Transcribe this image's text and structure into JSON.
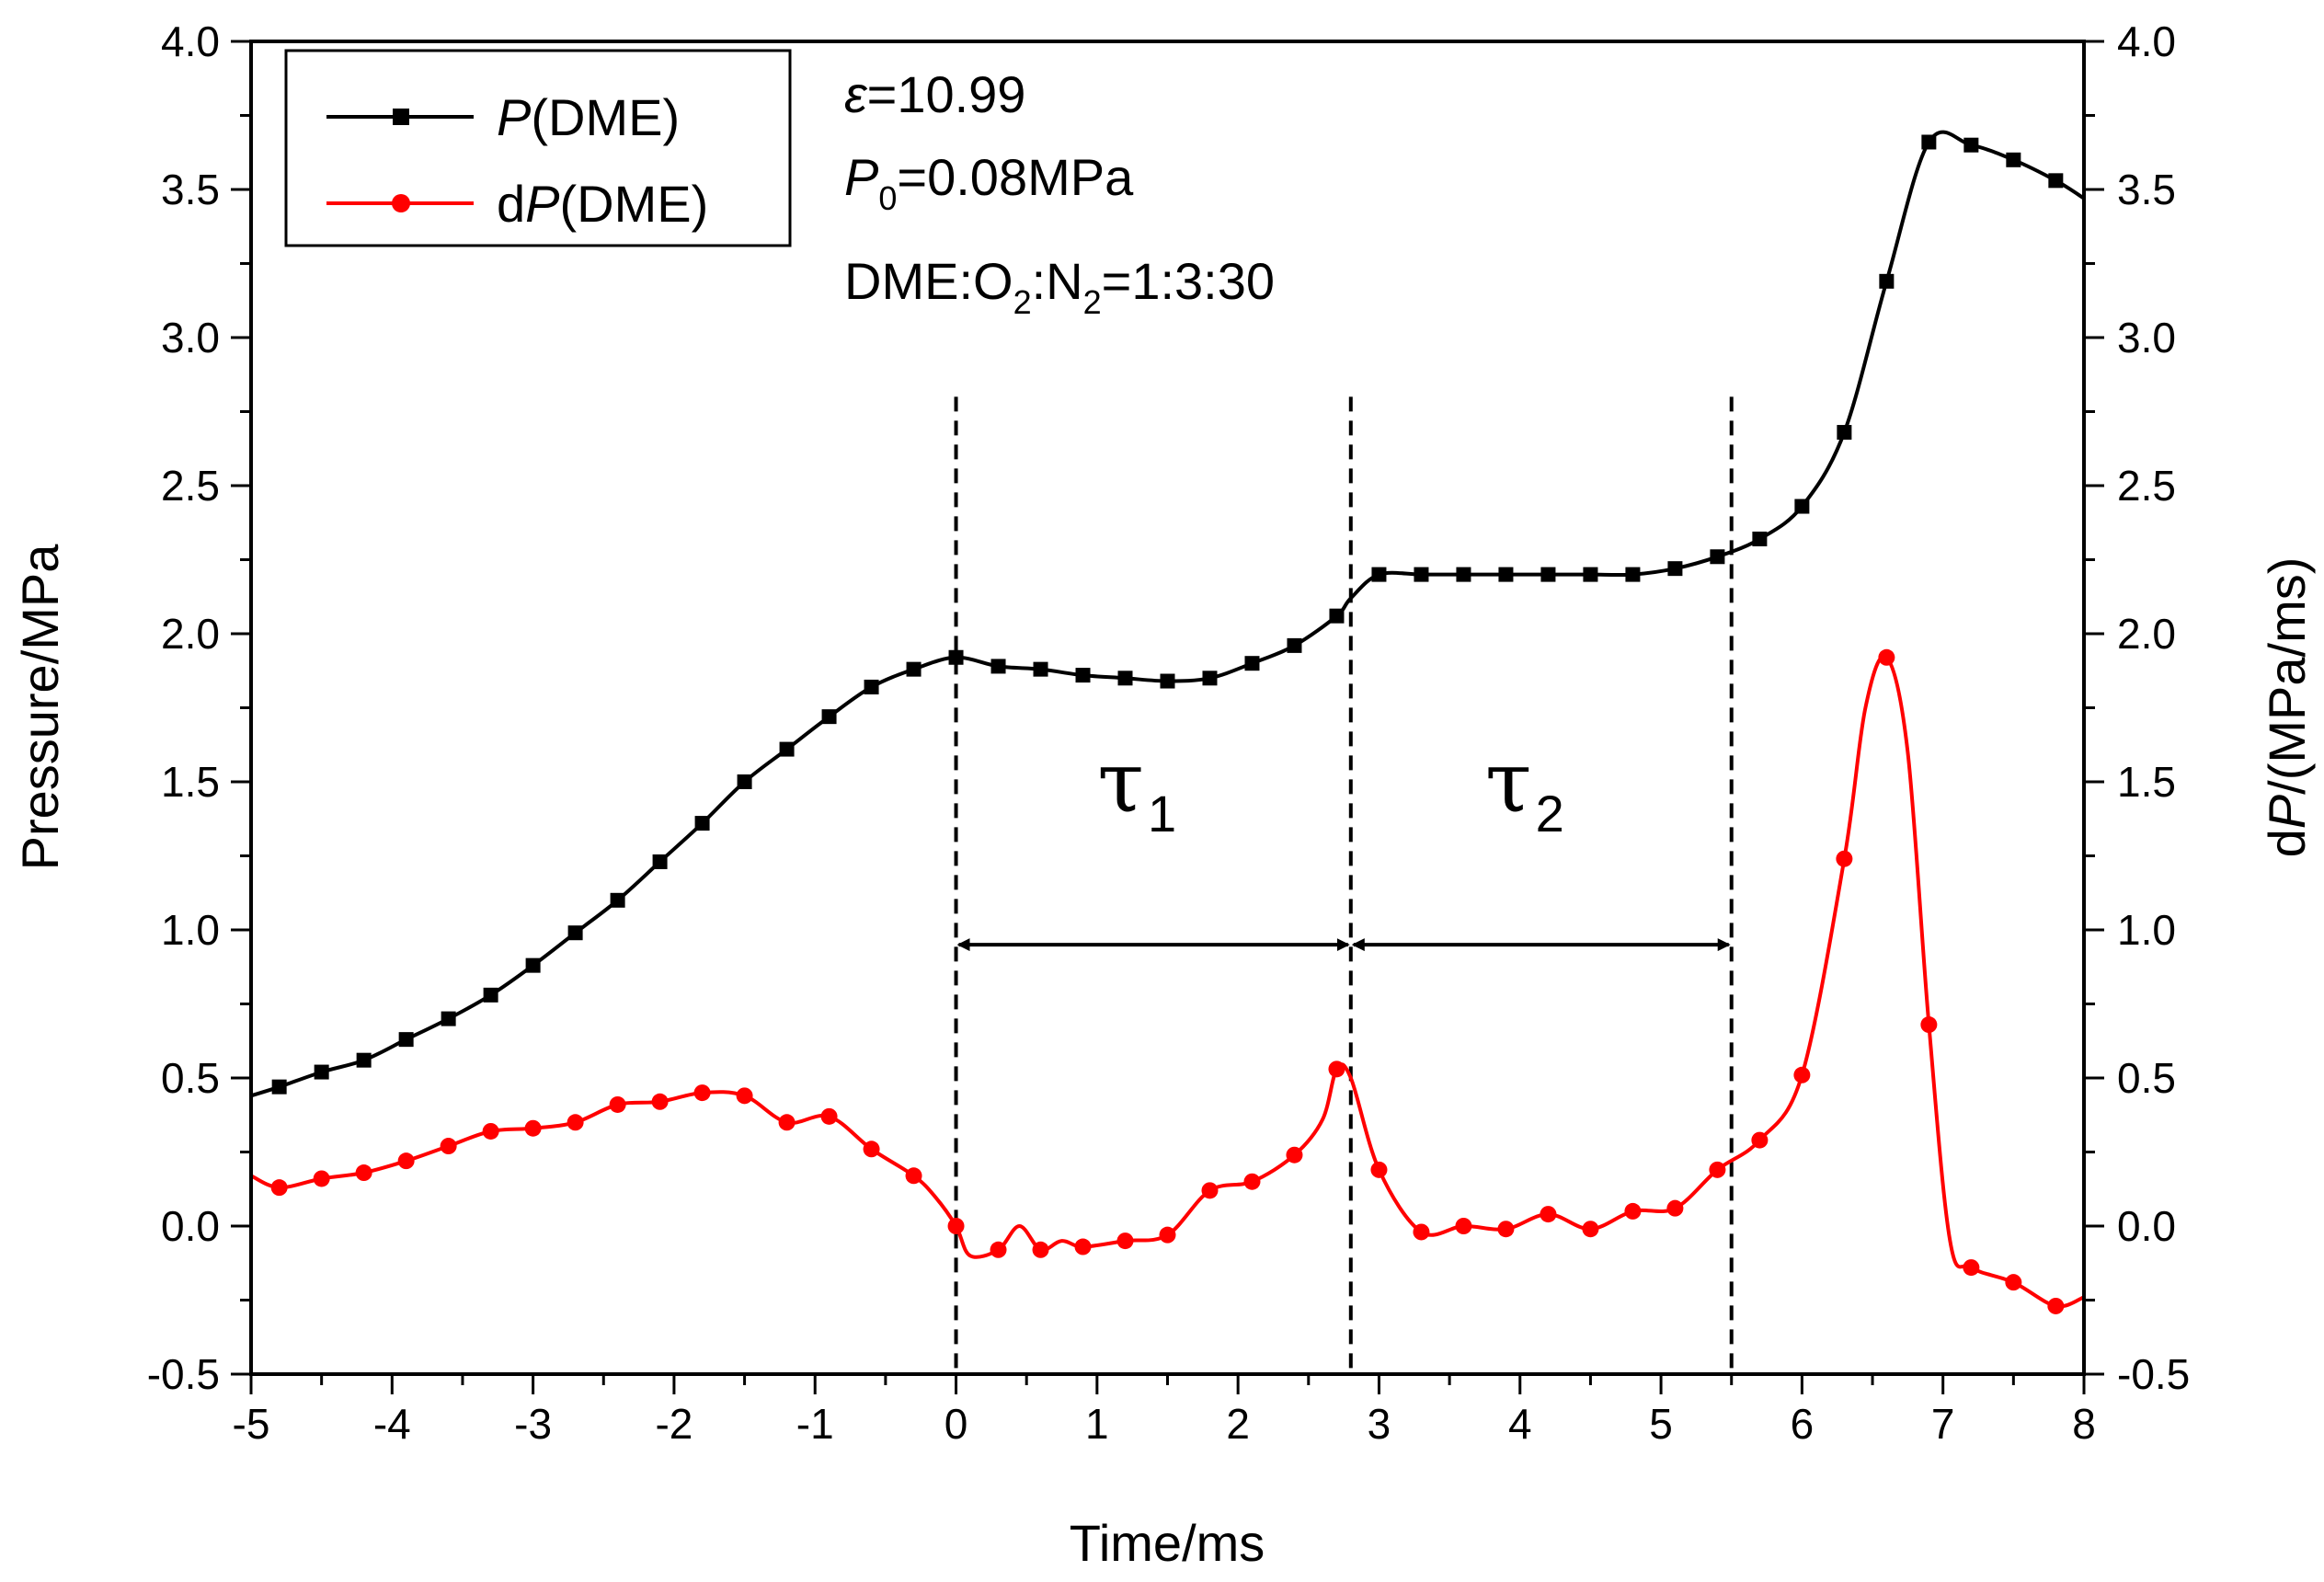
{
  "chart_data": {
    "type": "line",
    "xlabel": "Time/ms",
    "ylabel_left": "Pressure/MPa",
    "ylabel_right": {
      "prefix": "d",
      "italic": "P",
      "suffix": "/(MPa/ms)"
    },
    "xlim": [
      -5,
      8
    ],
    "ylim_left": [
      -0.5,
      4.0
    ],
    "ylim_right": [
      -0.5,
      4.0
    ],
    "x_ticks": [
      -5,
      -4,
      -3,
      -2,
      -1,
      0,
      1,
      2,
      3,
      4,
      5,
      6,
      7,
      8
    ],
    "x_tick_labels": [
      "-5",
      "-4",
      "-3",
      "-2",
      "-1",
      "0",
      "1",
      "2",
      "3",
      "4",
      "5",
      "6",
      "7",
      "8"
    ],
    "y_ticks": [
      -0.5,
      0.0,
      0.5,
      1.0,
      1.5,
      2.0,
      2.5,
      3.0,
      3.5,
      4.0
    ],
    "y_tick_labels": [
      "-0.5",
      "0.0",
      "0.5",
      "1.0",
      "1.5",
      "2.0",
      "2.5",
      "3.0",
      "3.5",
      "4.0"
    ],
    "grid": false,
    "legend_position": "top-left",
    "series": [
      {
        "name": "P(DME)",
        "legend": {
          "prefix": "",
          "italic": "P",
          "suffix": "(DME)"
        },
        "color": "#000000",
        "marker": "square",
        "axis": "left",
        "x": [
          -5.0,
          -4.8,
          -4.5,
          -4.2,
          -3.9,
          -3.6,
          -3.3,
          -3.0,
          -2.7,
          -2.4,
          -2.1,
          -1.8,
          -1.5,
          -1.2,
          -0.9,
          -0.6,
          -0.3,
          0.0,
          0.3,
          0.6,
          0.9,
          1.2,
          1.5,
          1.8,
          2.1,
          2.4,
          2.7,
          2.8,
          3.0,
          3.3,
          3.6,
          3.9,
          4.2,
          4.5,
          4.8,
          5.1,
          5.4,
          5.7,
          6.0,
          6.3,
          6.6,
          6.9,
          7.2,
          7.5,
          7.8,
          8.0
        ],
        "values": [
          0.44,
          0.47,
          0.52,
          0.56,
          0.63,
          0.7,
          0.78,
          0.88,
          0.99,
          1.1,
          1.23,
          1.36,
          1.5,
          1.61,
          1.72,
          1.82,
          1.88,
          1.92,
          1.89,
          1.88,
          1.86,
          1.85,
          1.84,
          1.85,
          1.9,
          1.96,
          2.06,
          2.12,
          2.2,
          2.2,
          2.2,
          2.2,
          2.2,
          2.2,
          2.2,
          2.22,
          2.26,
          2.32,
          2.43,
          2.68,
          3.19,
          3.66,
          3.65,
          3.6,
          3.53,
          3.47
        ],
        "marker_indices": [
          1,
          2,
          3,
          4,
          5,
          6,
          7,
          8,
          9,
          10,
          11,
          12,
          13,
          14,
          15,
          16,
          17,
          18,
          19,
          20,
          21,
          22,
          23,
          24,
          25,
          26,
          28,
          29,
          30,
          31,
          32,
          33,
          34,
          35,
          36,
          37,
          38,
          39,
          40,
          41,
          42,
          43,
          44
        ]
      },
      {
        "name": "dP(DME)",
        "legend": {
          "prefix": "d",
          "italic": "P",
          "suffix": "(DME)"
        },
        "color": "#ff0000",
        "marker": "circle",
        "axis": "right",
        "x": [
          -5.0,
          -4.8,
          -4.5,
          -4.2,
          -3.9,
          -3.6,
          -3.3,
          -3.0,
          -2.7,
          -2.4,
          -2.1,
          -1.8,
          -1.5,
          -1.2,
          -0.9,
          -0.6,
          -0.3,
          -0.15,
          0.0,
          0.1,
          0.3,
          0.45,
          0.6,
          0.75,
          0.9,
          1.2,
          1.5,
          1.8,
          2.1,
          2.4,
          2.6,
          2.7,
          2.8,
          3.0,
          3.3,
          3.6,
          3.9,
          4.2,
          4.5,
          4.8,
          5.1,
          5.4,
          5.7,
          6.0,
          6.3,
          6.45,
          6.6,
          6.75,
          6.9,
          7.05,
          7.2,
          7.5,
          7.8,
          8.0
        ],
        "values": [
          0.17,
          0.13,
          0.16,
          0.18,
          0.22,
          0.27,
          0.32,
          0.33,
          0.35,
          0.41,
          0.42,
          0.45,
          0.44,
          0.35,
          0.37,
          0.26,
          0.17,
          0.1,
          0.0,
          -0.1,
          -0.08,
          0.0,
          -0.08,
          -0.05,
          -0.07,
          -0.05,
          -0.03,
          0.12,
          0.15,
          0.24,
          0.36,
          0.53,
          0.5,
          0.19,
          -0.02,
          0.0,
          -0.01,
          0.04,
          -0.01,
          0.05,
          0.06,
          0.19,
          0.29,
          0.51,
          1.24,
          1.75,
          1.92,
          1.6,
          0.68,
          -0.05,
          -0.14,
          -0.19,
          -0.27,
          -0.24
        ],
        "marker_indices": [
          1,
          2,
          3,
          4,
          5,
          6,
          7,
          8,
          9,
          10,
          11,
          12,
          13,
          14,
          15,
          16,
          18,
          20,
          22,
          24,
          25,
          26,
          27,
          28,
          29,
          31,
          33,
          34,
          35,
          36,
          37,
          38,
          39,
          40,
          41,
          42,
          43,
          44,
          46,
          48,
          50,
          51,
          52
        ]
      }
    ],
    "annotations": {
      "conditions": [
        {
          "parts": [
            {
              "text": "ε",
              "italic": true
            },
            {
              "text": "=10.99"
            }
          ]
        },
        {
          "parts": [
            {
              "text": "P",
              "italic": true
            },
            {
              "text": "0",
              "sub": true
            },
            {
              "text": "=0.08MPa"
            }
          ]
        },
        {
          "parts": [
            {
              "text": "DME:O"
            },
            {
              "text": "2",
              "sub": true
            },
            {
              "text": ":N"
            },
            {
              "text": "2",
              "sub": true
            },
            {
              "text": "=1:3:30"
            }
          ]
        }
      ],
      "vlines_x": [
        0.0,
        2.8,
        5.5
      ],
      "vline_y_top": 2.8,
      "arrow_y": 0.95,
      "intervals": [
        {
          "symbol": "τ",
          "sub": "1",
          "x_start": 0.0,
          "x_end": 2.8,
          "label_y": 1.4
        },
        {
          "symbol": "τ",
          "sub": "2",
          "x_start": 2.8,
          "x_end": 5.5,
          "label_y": 1.4
        }
      ]
    }
  }
}
